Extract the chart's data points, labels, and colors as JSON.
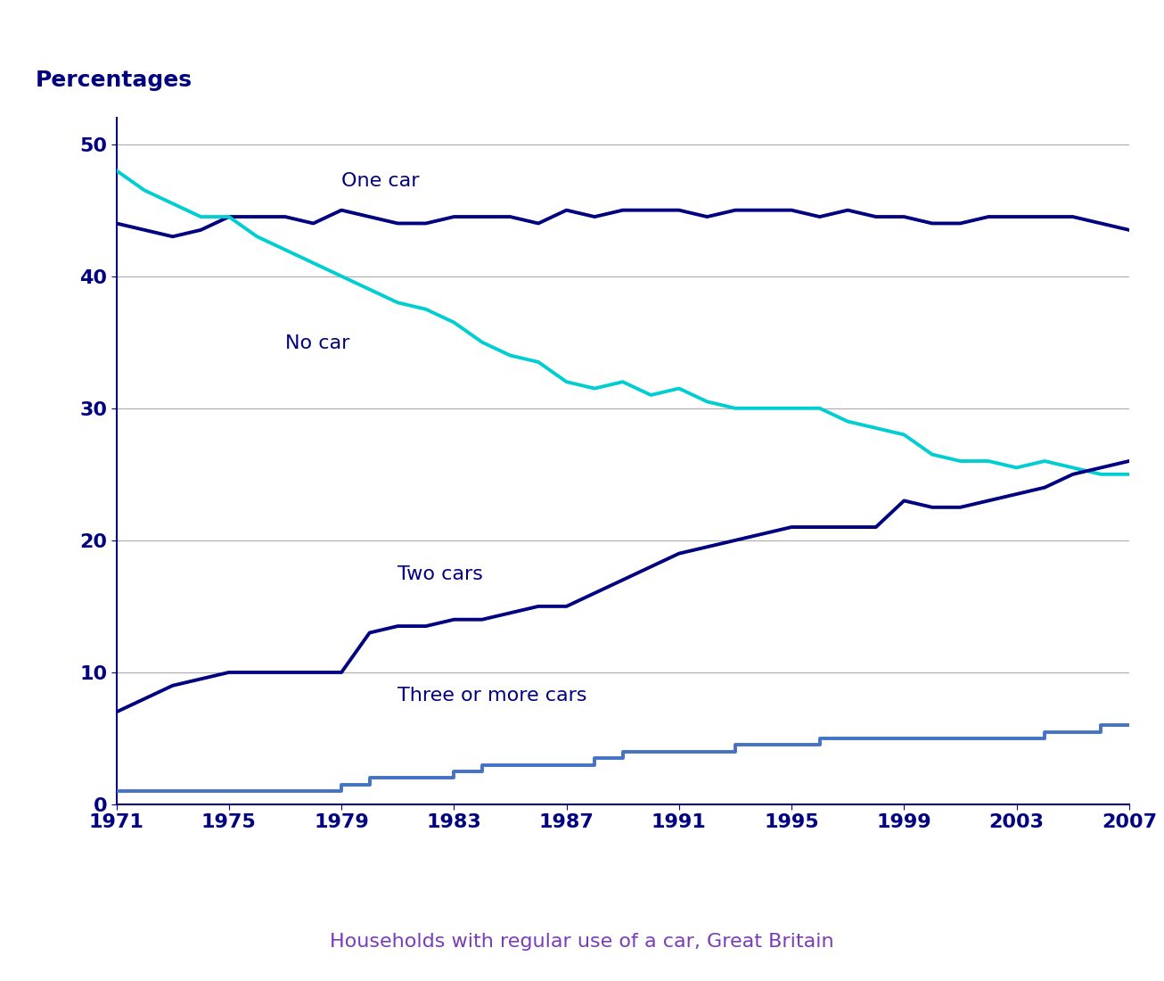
{
  "years": [
    1971,
    1972,
    1973,
    1974,
    1975,
    1976,
    1977,
    1978,
    1979,
    1980,
    1981,
    1982,
    1983,
    1984,
    1985,
    1986,
    1987,
    1988,
    1989,
    1990,
    1991,
    1992,
    1993,
    1994,
    1995,
    1996,
    1997,
    1998,
    1999,
    2000,
    2001,
    2002,
    2003,
    2004,
    2005,
    2006,
    2007
  ],
  "one_car": [
    44,
    43.5,
    43,
    43.5,
    44.5,
    44.5,
    44.5,
    44,
    45,
    44.5,
    44,
    44,
    44.5,
    44.5,
    44.5,
    44,
    45,
    44.5,
    45,
    45,
    45,
    44.5,
    45,
    45,
    45,
    44.5,
    45,
    44.5,
    44.5,
    44,
    44,
    44.5,
    44.5,
    44.5,
    44.5,
    44,
    43.5
  ],
  "no_car": [
    48,
    46.5,
    45.5,
    44.5,
    44.5,
    43,
    42,
    41,
    40,
    39,
    38,
    37.5,
    36.5,
    35,
    34,
    33.5,
    32,
    31.5,
    32,
    31,
    31.5,
    30.5,
    30,
    30,
    30,
    30,
    29,
    28.5,
    28,
    26.5,
    26,
    26,
    25.5,
    26,
    25.5,
    25,
    25
  ],
  "two_cars": [
    7,
    8,
    9,
    9.5,
    10,
    10,
    10,
    10,
    10,
    13,
    13.5,
    13.5,
    14,
    14,
    14.5,
    15,
    15,
    16,
    17,
    18,
    19,
    19.5,
    20,
    20.5,
    21,
    21,
    21,
    21,
    23,
    22.5,
    22.5,
    23,
    23.5,
    24,
    25,
    25.5,
    26
  ],
  "three_or_more": [
    1,
    1,
    1,
    1,
    1,
    1,
    1,
    1,
    1.5,
    2,
    2,
    2,
    2.5,
    3,
    3,
    3,
    3,
    3.5,
    4,
    4,
    4,
    4,
    4.5,
    4.5,
    4.5,
    5,
    5,
    5,
    5,
    5,
    5,
    5,
    5,
    5.5,
    5.5,
    6,
    6
  ],
  "one_car_color": "#000080",
  "no_car_color": "#00CED1",
  "two_cars_color": "#000080",
  "three_or_more_color": "#4472C4",
  "percentages_label": "Percentages",
  "xlabel": "Households with regular use of a car, Great Britain",
  "xlabel_color": "#7B3DB5",
  "yticks": [
    0,
    10,
    20,
    30,
    40,
    50
  ],
  "xticks": [
    1971,
    1975,
    1979,
    1983,
    1987,
    1991,
    1995,
    1999,
    2003,
    2007
  ],
  "ylim": [
    0,
    52
  ],
  "xlim": [
    1971,
    2007
  ],
  "bg_color": "#FFFFFF",
  "grid_color": "#AAAAAA",
  "label_one_car": "One car",
  "label_no_car": "No car",
  "label_two_cars": "Two cars",
  "label_three_or_more": "Three or more cars",
  "label_color": "#000080",
  "annotation_fontsize": 16,
  "tick_fontsize": 16,
  "title_fontsize": 18
}
